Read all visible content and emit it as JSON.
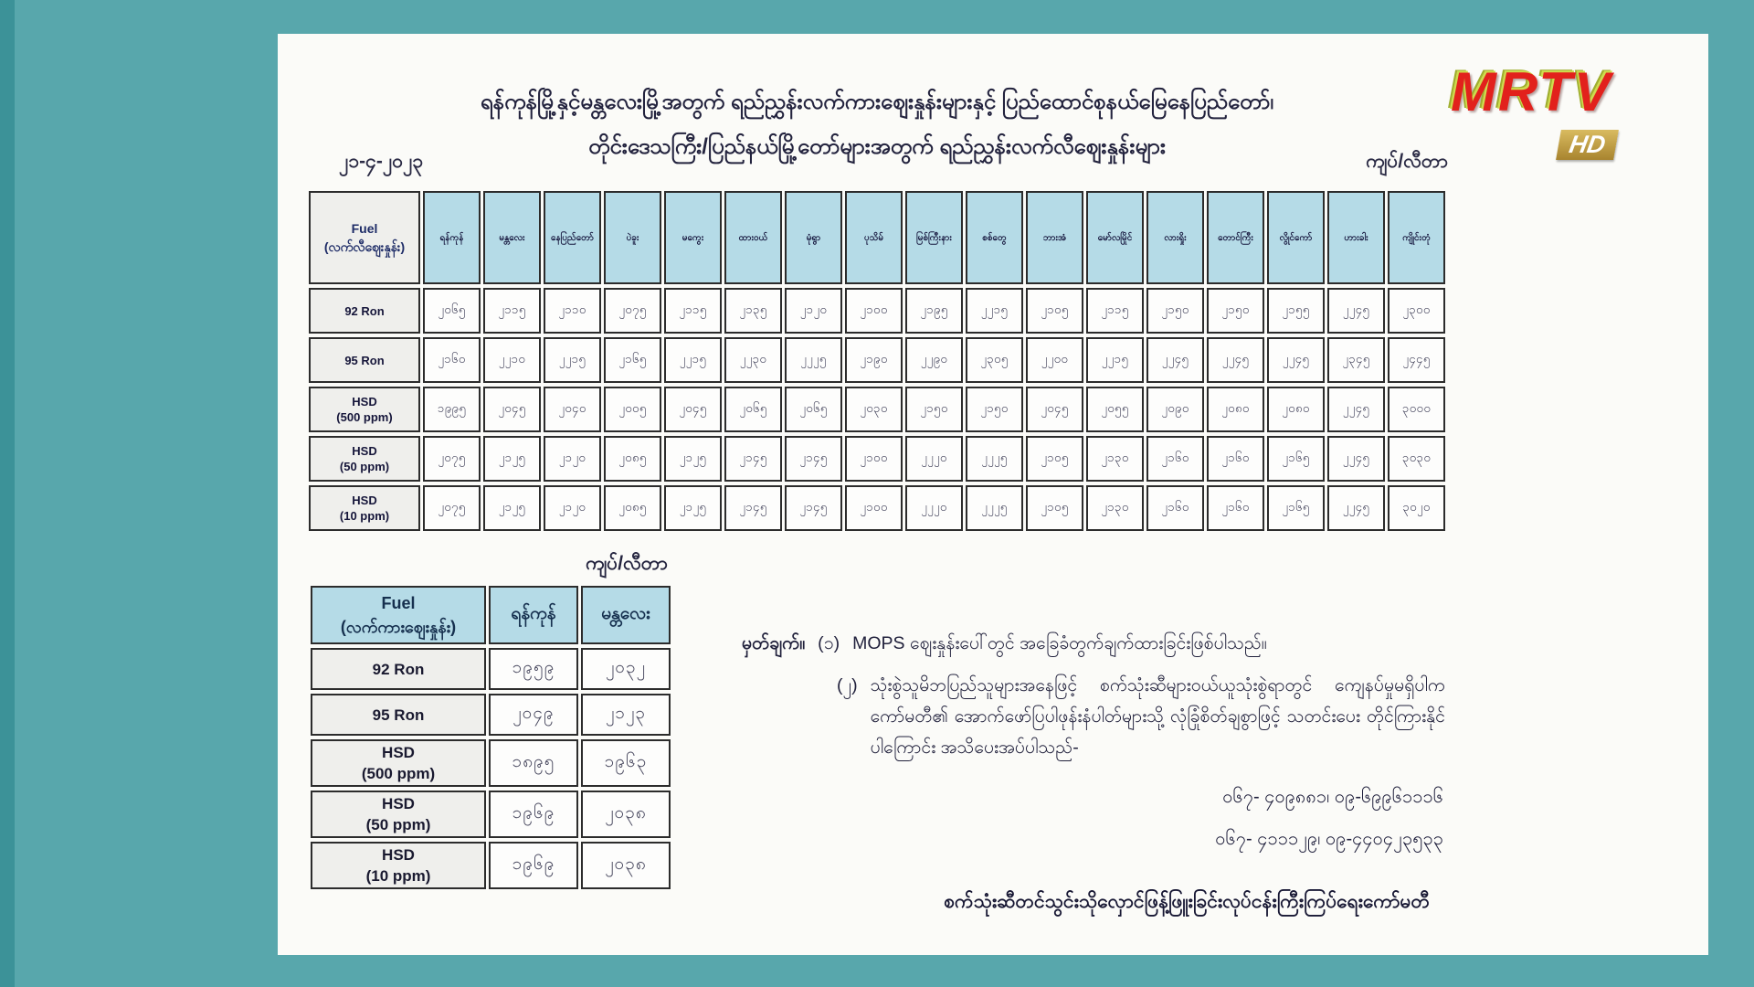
{
  "channel": {
    "logo_text": "MRTV",
    "hd_badge": "HD"
  },
  "colors": {
    "background_teal": "#58a7ac",
    "edge_teal": "#3c9298",
    "table_header_blue": "#b5dbe7",
    "label_cell_gray": "#efefec",
    "logo_red": "#e2211c",
    "logo_shadow_green": "#9fae2f",
    "hd_badge_gold": "#c8a24b"
  },
  "document": {
    "title_line1": "ရန်ကုန်မြို့နှင့်မန္တလေးမြို့အတွက် ရည်ညွှန်းလက်ကားဈေးနှုန်းများနှင့် ပြည်ထောင်စုနယ်မြေနေပြည်တော်၊",
    "title_line2": "တိုင်းဒေသကြီး/ပြည်နယ်မြို့တော်များအတွက် ရည်ညွှန်းလက်လီဈေးနှုန်းများ",
    "date": "၂၁-၄-၂၀၂၃",
    "unit_label_top": "ကျပ်/လီတာ",
    "unit_label_small_table": "ကျပ်/လီတာ",
    "footer": "စက်သုံးဆီတင်သွင်းသိုလှောင်ဖြန့်ဖြူးခြင်းလုပ်ငန်းကြီးကြပ်ရေးကော်မတီ"
  },
  "big_table": {
    "fuel_header_line1": "Fuel",
    "fuel_header_line2": "(လက်လီဈေးနှုန်း)",
    "cities": [
      "ရန်ကုန်",
      "မန္တလေး",
      "နေပြည်တော်",
      "ပဲခူး",
      "မကွေး",
      "ထားဝယ်",
      "မုံရွာ",
      "ပုသိမ်",
      "မြစ်ကြီးနား",
      "စစ်တွေ",
      "ဘားအံ",
      "မော်လမြိုင်",
      "လားရှိုး",
      "တောင်ကြီး",
      "လွိုင်ကော်",
      "ဟားခါး",
      "ကျိုင်းတုံ"
    ],
    "rows": [
      {
        "label_lines": [
          "92 Ron"
        ],
        "values": [
          "၂၀၆၅",
          "၂၁၁၅",
          "၂၁၁၀",
          "၂၀၇၅",
          "၂၁၁၅",
          "၂၁၃၅",
          "၂၁၂၀",
          "၂၁၀၀",
          "၂၁၉၅",
          "၂၂၁၅",
          "၂၁၀၅",
          "၂၁၁၅",
          "၂၁၅၀",
          "၂၁၅၀",
          "၂၁၅၅",
          "၂၂၄၅",
          "၂၃၀၀"
        ]
      },
      {
        "label_lines": [
          "95 Ron"
        ],
        "values": [
          "၂၁၆၀",
          "၂၂၁၀",
          "၂၂၁၅",
          "၂၁၆၅",
          "၂၂၁၅",
          "၂၂၃၀",
          "၂၂၂၅",
          "၂၁၉၀",
          "၂၂၉၀",
          "၂၃၀၅",
          "၂၂၀၀",
          "၂၂၁၅",
          "၂၂၄၅",
          "၂၂၄၅",
          "၂၂၄၅",
          "၂၃၄၅",
          "၂၄၄၅"
        ]
      },
      {
        "label_lines": [
          "HSD",
          "(500 ppm)"
        ],
        "values": [
          "၁၉၉၅",
          "၂၀၄၅",
          "၂၀၄၀",
          "၂၀၀၅",
          "၂၀၄၅",
          "၂၀၆၅",
          "၂၀၆၅",
          "၂၀၃၀",
          "၂၁၅၀",
          "၂၁၅၀",
          "၂၀၄၅",
          "၂၀၅၅",
          "၂၀၉၀",
          "၂၀၈၀",
          "၂၀၈၀",
          "၂၂၄၅",
          "၃၀၀၀"
        ]
      },
      {
        "label_lines": [
          "HSD",
          "(50 ppm)"
        ],
        "values": [
          "၂၀၇၅",
          "၂၁၂၅",
          "၂၁၂၀",
          "၂၀၈၅",
          "၂၁၂၅",
          "၂၁၄၅",
          "၂၁၄၅",
          "၂၁၀၀",
          "၂၂၂၀",
          "၂၂၂၅",
          "၂၁၀၅",
          "၂၁၃၀",
          "၂၁၆၀",
          "၂၁၆၀",
          "၂၁၆၅",
          "၂၂၄၅",
          "၃၀၃၀"
        ]
      },
      {
        "label_lines": [
          "HSD",
          "(10 ppm)"
        ],
        "values": [
          "၂၀၇၅",
          "၂၁၂၅",
          "၂၁၂၀",
          "၂၀၈၅",
          "၂၁၂၅",
          "၂၁၄၅",
          "၂၁၄၅",
          "၂၁၀၀",
          "၂၂၂၀",
          "၂၂၂၅",
          "၂၁၀၅",
          "၂၁၃၀",
          "၂၁၆၀",
          "၂၁၆၀",
          "၂၁၆၅",
          "၂၂၄၅",
          "၃၀၂၀"
        ]
      }
    ]
  },
  "small_table": {
    "fuel_header_line1": "Fuel",
    "fuel_header_line2": "(လက်ကားဈေးနှုန်း)",
    "columns": [
      "ရန်ကုန်",
      "မန္တလေး"
    ],
    "rows": [
      {
        "label_lines": [
          "92 Ron"
        ],
        "values": [
          "၁၉၅၉",
          "၂၀၃၂"
        ]
      },
      {
        "label_lines": [
          "95 Ron"
        ],
        "values": [
          "၂၀၄၉",
          "၂၁၂၃"
        ]
      },
      {
        "label_lines": [
          "HSD",
          "(500 ppm)"
        ],
        "values": [
          "၁၈၉၅",
          "၁၉၆၃"
        ]
      },
      {
        "label_lines": [
          "HSD",
          "(50 ppm)"
        ],
        "values": [
          "၁၉၆၉",
          "၂၀၃၈"
        ]
      },
      {
        "label_lines": [
          "HSD",
          "(10 ppm)"
        ],
        "values": [
          "၁၉၆၉",
          "၂၀၃၈"
        ]
      }
    ]
  },
  "notes": {
    "heading": "မှတ်ချက်။",
    "items": [
      {
        "num": "(၁)",
        "text": "MOPS ဈေးနှုန်းပေါ်တွင် အခြေခံတွက်ချက်ထားခြင်းဖြစ်ပါသည်။"
      },
      {
        "num": "(၂)",
        "text": "သုံးစွဲသူမိဘပြည်သူများအနေဖြင့် စက်သုံးဆီများဝယ်ယူသုံးစွဲရာတွင် ကျေနပ်မှုမရှိပါက ကော်မတီ၏ အောက်ဖော်ပြပါဖုန်းနံပါတ်များသို့ လုံခြုံစိတ်ချစွာဖြင့် သတင်းပေး တိုင်ကြားနိုင်ပါကြောင်း အသိပေးအပ်ပါသည်-"
      }
    ],
    "phone_line1": "၀၆၇- ၄၀၉၈၈၁၊ ၀၉-၆၉၉၆၁၁၁၆",
    "phone_line2": "၀၆၇- ၄၁၁၁၂၉၊ ၀၉-၄၄၀၄၂၃၅၃၃"
  }
}
